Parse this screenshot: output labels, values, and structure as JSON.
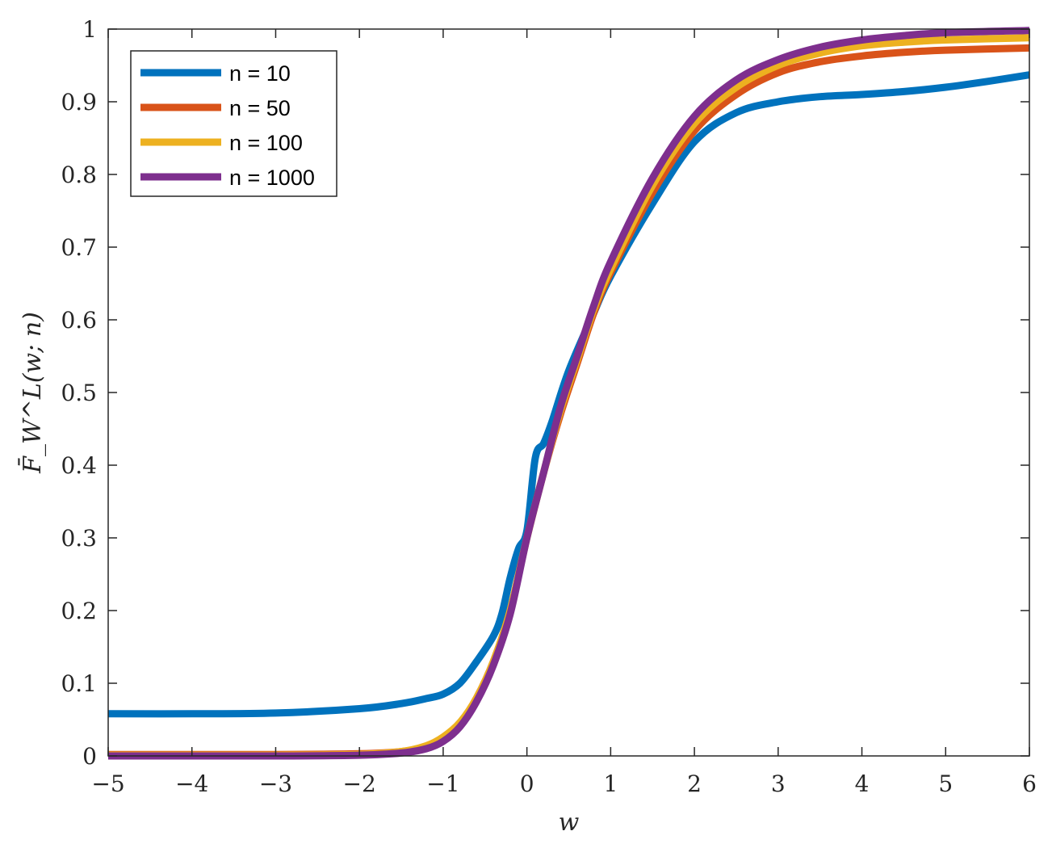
{
  "chart_data": {
    "type": "line",
    "title": "",
    "xlabel": "w",
    "ylabel": "F̄_W^L(w; n)",
    "xlim": [
      -5,
      6
    ],
    "ylim": [
      0,
      1
    ],
    "grid": false,
    "legend_position": "top-left",
    "x_ticks": [
      {
        "value": -5,
        "label": "−5"
      },
      {
        "value": -4,
        "label": "−4"
      },
      {
        "value": -3,
        "label": "−3"
      },
      {
        "value": -2,
        "label": "−2"
      },
      {
        "value": -1,
        "label": "−1"
      },
      {
        "value": 0,
        "label": "0"
      },
      {
        "value": 1,
        "label": "1"
      },
      {
        "value": 2,
        "label": "2"
      },
      {
        "value": 3,
        "label": "3"
      },
      {
        "value": 4,
        "label": "4"
      },
      {
        "value": 5,
        "label": "5"
      },
      {
        "value": 6,
        "label": "6"
      }
    ],
    "y_ticks": [
      {
        "value": 0,
        "label": "0"
      },
      {
        "value": 0.1,
        "label": "0.1"
      },
      {
        "value": 0.2,
        "label": "0.2"
      },
      {
        "value": 0.3,
        "label": "0.3"
      },
      {
        "value": 0.4,
        "label": "0.4"
      },
      {
        "value": 0.5,
        "label": "0.5"
      },
      {
        "value": 0.6,
        "label": "0.6"
      },
      {
        "value": 0.7,
        "label": "0.7"
      },
      {
        "value": 0.8,
        "label": "0.8"
      },
      {
        "value": 0.9,
        "label": "0.9"
      },
      {
        "value": 1,
        "label": "1"
      }
    ],
    "series": [
      {
        "name": "n = 10",
        "color": "#0072BD",
        "x": [
          -5,
          -4,
          -3,
          -2,
          -1.5,
          -1.2,
          -1,
          -0.8,
          -0.6,
          -0.4,
          -0.3,
          -0.2,
          -0.1,
          0,
          0.1,
          0.2,
          0.3,
          0.5,
          0.8,
          1,
          1.5,
          2,
          2.5,
          3,
          3.5,
          4,
          4.5,
          5,
          5.5,
          6
        ],
        "y": [
          0.058,
          0.058,
          0.059,
          0.065,
          0.072,
          0.079,
          0.085,
          0.1,
          0.13,
          0.165,
          0.195,
          0.245,
          0.285,
          0.31,
          0.41,
          0.43,
          0.46,
          0.53,
          0.61,
          0.66,
          0.76,
          0.845,
          0.885,
          0.9,
          0.907,
          0.91,
          0.914,
          0.92,
          0.928,
          0.937
        ]
      },
      {
        "name": "n = 50",
        "color": "#D95319",
        "x": [
          -5,
          -3,
          -2,
          -1.5,
          -1.2,
          -1,
          -0.8,
          -0.6,
          -0.4,
          -0.2,
          0,
          0.2,
          0.4,
          0.6,
          0.8,
          1,
          1.5,
          2,
          2.5,
          3,
          3.5,
          4,
          4.5,
          5,
          6
        ],
        "y": [
          0.002,
          0.002,
          0.003,
          0.006,
          0.013,
          0.025,
          0.045,
          0.08,
          0.13,
          0.2,
          0.3,
          0.39,
          0.47,
          0.54,
          0.61,
          0.665,
          0.775,
          0.86,
          0.91,
          0.94,
          0.955,
          0.963,
          0.968,
          0.971,
          0.974
        ]
      },
      {
        "name": "n = 100",
        "color": "#EDB120",
        "x": [
          -5,
          -3,
          -2,
          -1.5,
          -1.2,
          -1,
          -0.8,
          -0.6,
          -0.4,
          -0.2,
          0,
          0.2,
          0.4,
          0.6,
          0.8,
          1,
          1.5,
          2,
          2.5,
          3,
          3.5,
          4,
          4.5,
          5,
          6
        ],
        "y": [
          0.001,
          0.001,
          0.002,
          0.006,
          0.014,
          0.026,
          0.046,
          0.08,
          0.13,
          0.2,
          0.3,
          0.39,
          0.475,
          0.545,
          0.615,
          0.67,
          0.785,
          0.87,
          0.92,
          0.95,
          0.967,
          0.977,
          0.982,
          0.985,
          0.988
        ]
      },
      {
        "name": "n = 1000",
        "color": "#7E2F8E",
        "x": [
          -5,
          -3,
          -2,
          -1.5,
          -1.2,
          -1,
          -0.8,
          -0.6,
          -0.4,
          -0.2,
          0,
          0.2,
          0.4,
          0.6,
          0.8,
          1,
          1.5,
          2,
          2.5,
          3,
          3.5,
          4,
          4.5,
          5,
          6
        ],
        "y": [
          0.0,
          0.0,
          0.001,
          0.004,
          0.01,
          0.02,
          0.04,
          0.075,
          0.125,
          0.195,
          0.3,
          0.39,
          0.48,
          0.55,
          0.62,
          0.68,
          0.795,
          0.88,
          0.93,
          0.958,
          0.975,
          0.985,
          0.991,
          0.995,
          0.998
        ]
      }
    ]
  }
}
